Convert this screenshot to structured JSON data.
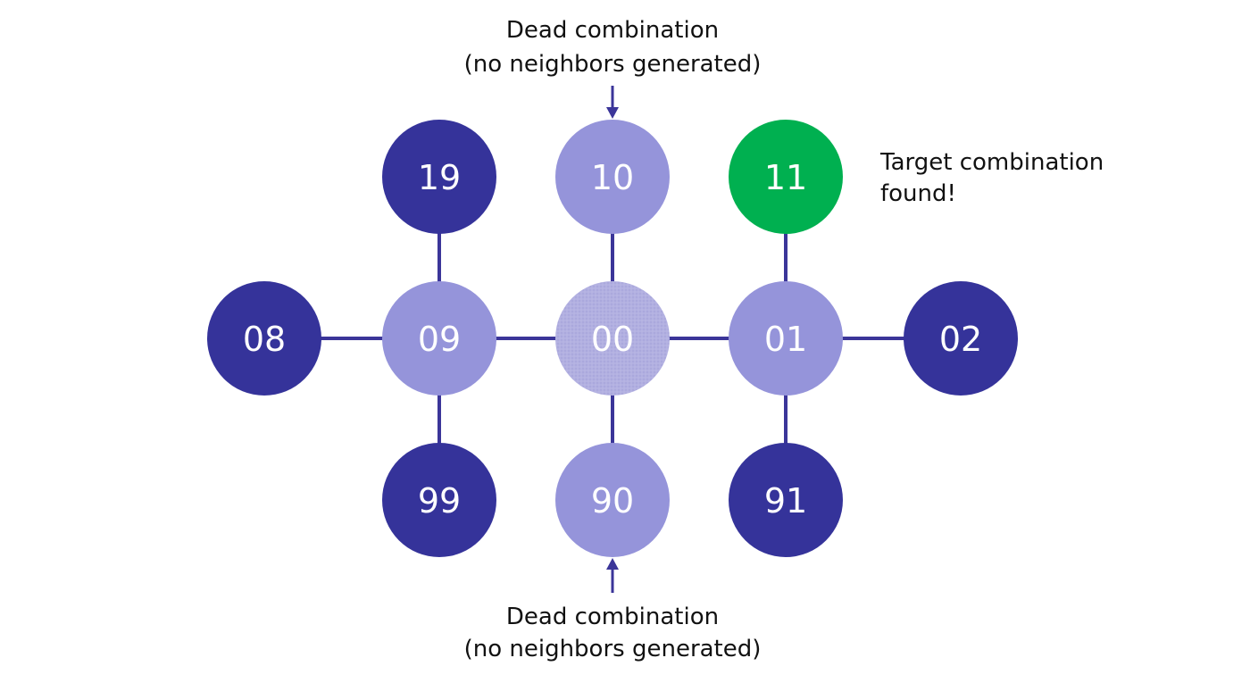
{
  "colors": {
    "dark_node": "#35339a",
    "light_node": "#9594da",
    "start_node": "#aeacdf",
    "target_node": "#00b050",
    "edge": "#3b3599",
    "label_text": "#ffffff",
    "annotation_text": "#111111"
  },
  "nodes": [
    {
      "id": "n19",
      "label": "19",
      "state": "dark"
    },
    {
      "id": "n10",
      "label": "10",
      "state": "light"
    },
    {
      "id": "n11",
      "label": "11",
      "state": "target"
    },
    {
      "id": "n08",
      "label": "08",
      "state": "dark"
    },
    {
      "id": "n09",
      "label": "09",
      "state": "light"
    },
    {
      "id": "n00",
      "label": "00",
      "state": "start"
    },
    {
      "id": "n01",
      "label": "01",
      "state": "light"
    },
    {
      "id": "n02",
      "label": "02",
      "state": "dark"
    },
    {
      "id": "n99",
      "label": "99",
      "state": "dark"
    },
    {
      "id": "n90",
      "label": "90",
      "state": "light"
    },
    {
      "id": "n91",
      "label": "91",
      "state": "dark"
    }
  ],
  "edges": [
    [
      "n08",
      "n09"
    ],
    [
      "n09",
      "n00"
    ],
    [
      "n00",
      "n01"
    ],
    [
      "n01",
      "n02"
    ],
    [
      "n19",
      "n09"
    ],
    [
      "n09",
      "n99"
    ],
    [
      "n10",
      "n00"
    ],
    [
      "n00",
      "n90"
    ],
    [
      "n11",
      "n01"
    ],
    [
      "n01",
      "n91"
    ]
  ],
  "annotations": {
    "top_dead": {
      "line1": "Dead combination",
      "line2": "(no neighbors generated)"
    },
    "bottom_dead": {
      "line1": "Dead combination",
      "line2": "(no neighbors generated)"
    },
    "target_found": {
      "line1": "Target combination",
      "line2": "found!"
    }
  }
}
